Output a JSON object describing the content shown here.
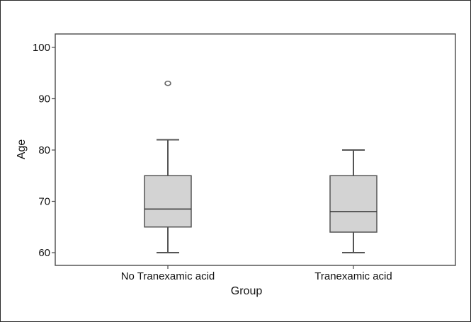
{
  "chart_data": {
    "type": "boxplot",
    "title": "",
    "xlabel": "Group",
    "ylabel": "Age",
    "ylim": [
      58.5,
      102.5
    ],
    "yticks": [
      60,
      70,
      80,
      90,
      100
    ],
    "categories": [
      "No Tranexamic acid",
      "Tranexamic acid"
    ],
    "boxes": [
      {
        "category": "No Tranexamic acid",
        "min": 60,
        "q1": 65,
        "median": 68.5,
        "q3": 75,
        "max": 82,
        "outliers": [
          93
        ]
      },
      {
        "category": "Tranexamic acid",
        "min": 60,
        "q1": 64,
        "median": 68,
        "q3": 75,
        "max": 80,
        "outliers": []
      }
    ],
    "box_fill": "#d3d3d3",
    "line_color": "#555555",
    "grid": false
  }
}
